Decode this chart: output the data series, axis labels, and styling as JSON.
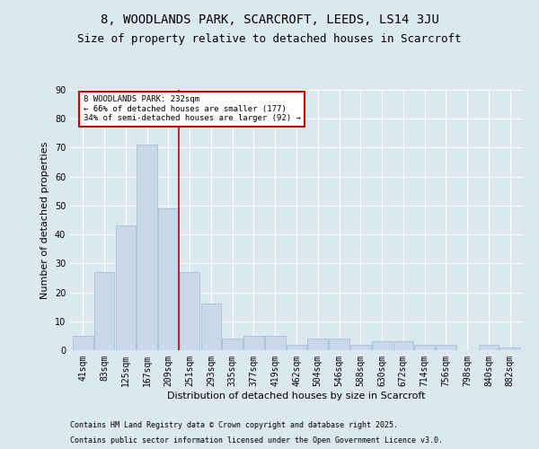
{
  "title1": "8, WOODLANDS PARK, SCARCROFT, LEEDS, LS14 3JU",
  "title2": "Size of property relative to detached houses in Scarcroft",
  "xlabel": "Distribution of detached houses by size in Scarcroft",
  "ylabel": "Number of detached properties",
  "bins": [
    "41sqm",
    "83sqm",
    "125sqm",
    "167sqm",
    "209sqm",
    "251sqm",
    "293sqm",
    "335sqm",
    "377sqm",
    "419sqm",
    "462sqm",
    "504sqm",
    "546sqm",
    "588sqm",
    "630sqm",
    "672sqm",
    "714sqm",
    "756sqm",
    "798sqm",
    "840sqm",
    "882sqm"
  ],
  "values": [
    5,
    27,
    43,
    71,
    49,
    27,
    16,
    4,
    5,
    5,
    2,
    4,
    4,
    2,
    3,
    3,
    2,
    2,
    0,
    2,
    1
  ],
  "bar_color": "#c8d8e8",
  "bar_edge_color": "#a0b8cc",
  "annotation_text": "8 WOODLANDS PARK: 232sqm\n← 66% of detached houses are smaller (177)\n34% of semi-detached houses are larger (92) →",
  "annotation_box_color": "#ffffff",
  "annotation_box_edge": "#cc0000",
  "vline_color": "#cc0000",
  "background_color": "#dce8f0",
  "grid_color": "#ffffff",
  "ylim": [
    0,
    90
  ],
  "yticks": [
    0,
    10,
    20,
    30,
    40,
    50,
    60,
    70,
    80,
    90
  ],
  "footer1": "Contains HM Land Registry data © Crown copyright and database right 2025.",
  "footer2": "Contains public sector information licensed under the Open Government Licence v3.0.",
  "title_fontsize": 10,
  "subtitle_fontsize": 9,
  "label_fontsize": 8,
  "tick_fontsize": 7,
  "footer_fontsize": 6
}
